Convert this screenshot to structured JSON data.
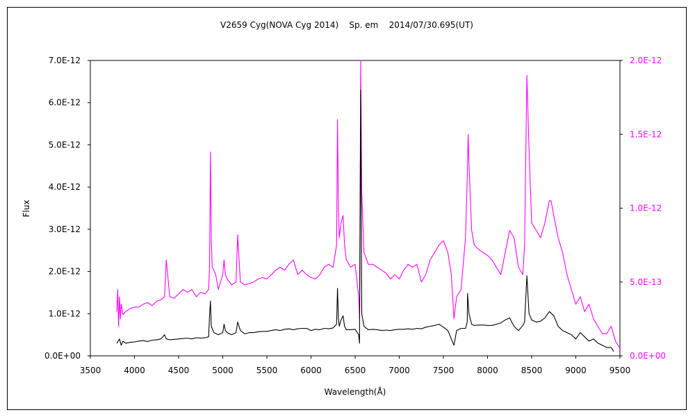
{
  "chart_data": {
    "type": "line",
    "title": "V2659 Cyg(NOVA Cyg 2014)    Sp. em    2014/07/30.695(UT)",
    "xlabel": "Wavelength(Å)",
    "ylabel": "Flux",
    "xlim": [
      3500,
      9500
    ],
    "ylim_left": [
      0,
      7e-12
    ],
    "ylim_right": [
      0,
      2e-12
    ],
    "x_ticks": [
      "3500",
      "4000",
      "4500",
      "5000",
      "5500",
      "6000",
      "6500",
      "7000",
      "7500",
      "8000",
      "8500",
      "9000",
      "9500"
    ],
    "y_ticks_left": [
      "0.0E+00",
      "1.0E-12",
      "2.0E-12",
      "3.0E-12",
      "4.0E-12",
      "5.0E-12",
      "6.0E-12",
      "7.0E-12"
    ],
    "y_ticks_right": [
      "0.0E+00",
      "5.0E-13",
      "1.0E-12",
      "1.5E-12",
      "2.0E-12"
    ],
    "grid": false,
    "legend": "none",
    "series": [
      {
        "axis": "left",
        "color": "#000000",
        "x": [
          3800,
          3830,
          3850,
          3870,
          3900,
          3950,
          4000,
          4050,
          4100,
          4150,
          4200,
          4250,
          4300,
          4340,
          4360,
          4400,
          4450,
          4500,
          4550,
          4600,
          4650,
          4700,
          4750,
          4800,
          4840,
          4850,
          4861,
          4870,
          4900,
          4950,
          5000,
          5015,
          5030,
          5050,
          5100,
          5150,
          5169,
          5200,
          5250,
          5300,
          5350,
          5400,
          5450,
          5500,
          5550,
          5600,
          5650,
          5700,
          5750,
          5800,
          5850,
          5900,
          5950,
          6000,
          6050,
          6100,
          6150,
          6200,
          6250,
          6290,
          6300,
          6310,
          6320,
          6340,
          6363,
          6380,
          6400,
          6450,
          6500,
          6540,
          6550,
          6563,
          6575,
          6600,
          6650,
          6700,
          6750,
          6800,
          6850,
          6900,
          6950,
          7000,
          7050,
          7100,
          7150,
          7200,
          7250,
          7300,
          7350,
          7400,
          7450,
          7500,
          7550,
          7590,
          7620,
          7650,
          7700,
          7750,
          7770,
          7773,
          7790,
          7820,
          7850,
          7900,
          7950,
          8000,
          8050,
          8100,
          8150,
          8200,
          8250,
          8300,
          8350,
          8400,
          8420,
          8446,
          8470,
          8500,
          8550,
          8600,
          8650,
          8700,
          8750,
          8800,
          8850,
          8900,
          8950,
          9000,
          9050,
          9100,
          9150,
          9200,
          9250,
          9300,
          9350,
          9400,
          9430
        ],
        "y": [
          0.3,
          0.4,
          0.25,
          0.35,
          0.3,
          0.32,
          0.33,
          0.35,
          0.36,
          0.34,
          0.37,
          0.38,
          0.4,
          0.5,
          0.4,
          0.38,
          0.39,
          0.4,
          0.41,
          0.42,
          0.4,
          0.43,
          0.42,
          0.43,
          0.45,
          0.95,
          1.3,
          0.7,
          0.55,
          0.5,
          0.55,
          0.75,
          0.6,
          0.55,
          0.5,
          0.55,
          0.8,
          0.6,
          0.52,
          0.55,
          0.55,
          0.57,
          0.58,
          0.58,
          0.6,
          0.62,
          0.6,
          0.63,
          0.64,
          0.62,
          0.64,
          0.65,
          0.65,
          0.6,
          0.63,
          0.62,
          0.65,
          0.64,
          0.66,
          0.75,
          1.6,
          0.9,
          0.7,
          0.85,
          0.95,
          0.7,
          0.62,
          0.62,
          0.63,
          0.5,
          0.3,
          6.3,
          1.0,
          0.7,
          0.62,
          0.63,
          0.62,
          0.6,
          0.61,
          0.6,
          0.62,
          0.63,
          0.63,
          0.64,
          0.63,
          0.65,
          0.64,
          0.68,
          0.7,
          0.72,
          0.75,
          0.68,
          0.6,
          0.4,
          0.25,
          0.6,
          0.65,
          0.65,
          0.8,
          1.48,
          1.0,
          0.75,
          0.72,
          0.73,
          0.73,
          0.72,
          0.72,
          0.75,
          0.78,
          0.85,
          0.9,
          0.7,
          0.6,
          0.72,
          0.8,
          1.9,
          1.0,
          0.85,
          0.8,
          0.82,
          0.9,
          1.05,
          0.95,
          0.7,
          0.6,
          0.55,
          0.5,
          0.4,
          0.55,
          0.45,
          0.35,
          0.4,
          0.3,
          0.25,
          0.2,
          0.2,
          0.1
        ]
      },
      {
        "axis": "right",
        "color": "#ff00ff",
        "x": [
          3800,
          3810,
          3820,
          3830,
          3840,
          3850,
          3870,
          3900,
          3950,
          4000,
          4050,
          4100,
          4150,
          4200,
          4250,
          4300,
          4340,
          4360,
          4400,
          4450,
          4500,
          4550,
          4600,
          4650,
          4700,
          4750,
          4800,
          4840,
          4850,
          4861,
          4870,
          4880,
          4900,
          4920,
          4950,
          5000,
          5015,
          5030,
          5050,
          5100,
          5150,
          5169,
          5190,
          5200,
          5250,
          5300,
          5350,
          5400,
          5450,
          5500,
          5550,
          5600,
          5650,
          5700,
          5750,
          5800,
          5850,
          5900,
          5950,
          6000,
          6050,
          6100,
          6150,
          6200,
          6250,
          6290,
          6300,
          6310,
          6320,
          6340,
          6363,
          6380,
          6400,
          6450,
          6500,
          6540,
          6550,
          6563,
          6575,
          6600,
          6650,
          6700,
          6750,
          6800,
          6850,
          6900,
          6950,
          7000,
          7050,
          7100,
          7150,
          7200,
          7250,
          7300,
          7350,
          7400,
          7450,
          7500,
          7550,
          7590,
          7620,
          7650,
          7700,
          7750,
          7770,
          7780,
          7790,
          7820,
          7850,
          7900,
          7950,
          8000,
          8050,
          8100,
          8150,
          8200,
          8250,
          8300,
          8350,
          8400,
          8420,
          8446,
          8470,
          8500,
          8550,
          8600,
          8650,
          8700,
          8720,
          8750,
          8800,
          8850,
          8900,
          8950,
          9000,
          9050,
          9100,
          9150,
          9200,
          9250,
          9300,
          9350,
          9400,
          9450,
          9500
        ],
        "y": [
          0.3,
          0.45,
          0.2,
          0.4,
          0.25,
          0.35,
          0.28,
          0.3,
          0.32,
          0.33,
          0.33,
          0.35,
          0.36,
          0.34,
          0.37,
          0.38,
          0.4,
          0.65,
          0.4,
          0.39,
          0.42,
          0.45,
          0.43,
          0.45,
          0.4,
          0.43,
          0.42,
          0.45,
          0.6,
          1.38,
          0.8,
          0.6,
          0.58,
          0.55,
          0.45,
          0.55,
          0.65,
          0.55,
          0.52,
          0.48,
          0.5,
          0.82,
          0.6,
          0.5,
          0.48,
          0.49,
          0.5,
          0.52,
          0.53,
          0.52,
          0.55,
          0.58,
          0.6,
          0.58,
          0.62,
          0.65,
          0.55,
          0.58,
          0.55,
          0.53,
          0.52,
          0.55,
          0.6,
          0.62,
          0.6,
          0.75,
          1.6,
          1.0,
          0.8,
          0.9,
          0.95,
          0.75,
          0.65,
          0.6,
          0.62,
          0.4,
          0.25,
          2.0,
          1.1,
          0.7,
          0.62,
          0.62,
          0.6,
          0.58,
          0.56,
          0.52,
          0.55,
          0.52,
          0.58,
          0.62,
          0.6,
          0.62,
          0.5,
          0.55,
          0.65,
          0.7,
          0.75,
          0.78,
          0.7,
          0.55,
          0.25,
          0.4,
          0.45,
          0.8,
          1.2,
          1.5,
          1.3,
          0.85,
          0.75,
          0.72,
          0.7,
          0.68,
          0.65,
          0.6,
          0.55,
          0.7,
          0.85,
          0.8,
          0.6,
          0.55,
          0.75,
          1.9,
          1.4,
          0.9,
          0.85,
          0.8,
          0.9,
          1.05,
          1.05,
          0.95,
          0.8,
          0.7,
          0.55,
          0.45,
          0.35,
          0.4,
          0.3,
          0.35,
          0.25,
          0.2,
          0.15,
          0.15,
          0.2,
          0.1,
          0.05
        ]
      }
    ]
  }
}
